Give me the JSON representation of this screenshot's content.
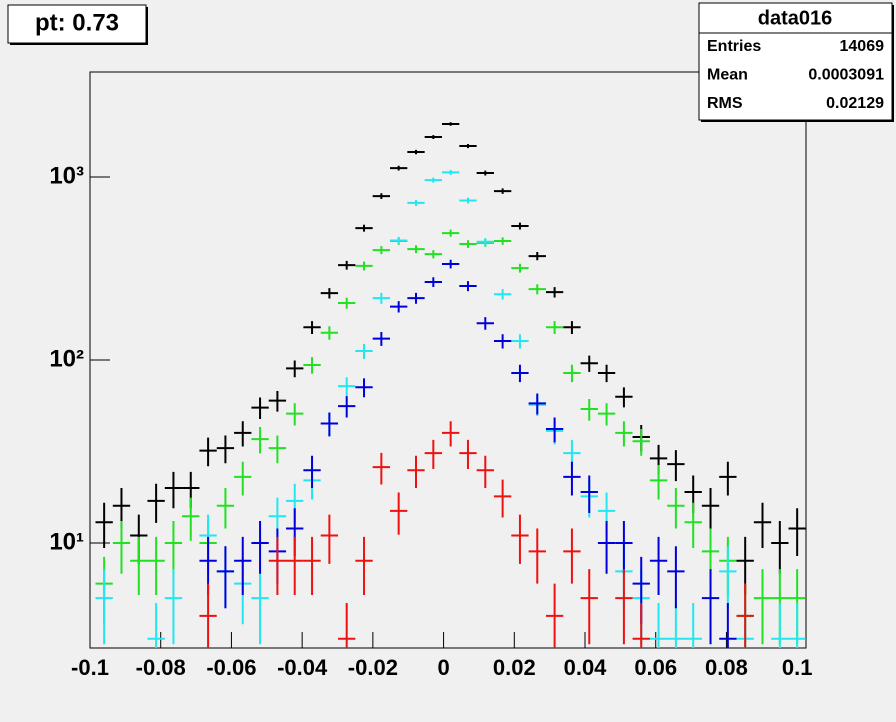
{
  "chart_data": {
    "type": "errorbar",
    "title": "pt: 0.73",
    "stats": {
      "title": "data016",
      "rows": [
        [
          "Entries",
          14069
        ],
        [
          "Mean",
          0.0003091
        ],
        [
          "RMS",
          0.02129
        ]
      ]
    },
    "xlim": [
      -0.1,
      0.1025
    ],
    "xticks": [
      -0.1,
      -0.08,
      -0.06,
      -0.04,
      -0.02,
      0,
      0.02,
      0.04,
      0.06,
      0.08,
      0.1
    ],
    "ylim": [
      2.67,
      3750
    ],
    "ylog": true,
    "yticks": [
      {
        "value": 10,
        "label": "10¹"
      },
      {
        "value": 100,
        "label": "10²"
      },
      {
        "value": 1000,
        "label": "10³"
      }
    ],
    "bin_width": 0.0049,
    "x": [
      -0.096,
      -0.0911,
      -0.0862,
      -0.0813,
      -0.0764,
      -0.0715,
      -0.0666,
      -0.0617,
      -0.0568,
      -0.0519,
      -0.047,
      -0.0421,
      -0.0372,
      -0.0323,
      -0.0274,
      -0.0225,
      -0.0176,
      -0.0127,
      -0.0078,
      -0.0029,
      0.002,
      0.0069,
      0.0118,
      0.0167,
      0.0216,
      0.0265,
      0.0314,
      0.0363,
      0.0412,
      0.0461,
      0.051,
      0.0559,
      0.0608,
      0.0657,
      0.0706,
      0.0755,
      0.0804,
      0.0853,
      0.0902,
      0.0951,
      0.1
    ],
    "series": [
      {
        "color": "#000000",
        "values": [
          13,
          16,
          11,
          17,
          20,
          20,
          32,
          33,
          40,
          55,
          60,
          90,
          151,
          232,
          330,
          526,
          787,
          1119,
          1370,
          1655,
          1950,
          1477,
          1052,
          838,
          540,
          370,
          235,
          151,
          96,
          85,
          63,
          38,
          29,
          27,
          19,
          16,
          23,
          8,
          13,
          10,
          12
        ],
        "yerr": [
          3.6,
          4,
          3.3,
          4.1,
          4.5,
          4.5,
          5.7,
          5.7,
          6.3,
          7.4,
          7.7,
          9.5,
          12.3,
          15.2,
          18.2,
          22.9,
          28.1,
          33.5,
          37,
          40.7,
          44.2,
          38.4,
          32.4,
          28.9,
          23.2,
          19.2,
          15.3,
          12.3,
          9.8,
          9.2,
          7.9,
          6.2,
          5.4,
          5.2,
          4.4,
          4,
          4.8,
          2.8,
          3.6,
          3.2,
          3.5
        ]
      },
      {
        "color": "#22e022",
        "values": [
          6,
          10,
          8,
          8,
          10,
          14,
          10,
          16,
          23,
          37,
          33,
          51,
          94,
          141,
          205,
          327,
          399,
          447,
          404,
          379,
          494,
          431,
          437,
          447,
          318,
          244,
          151,
          85,
          54,
          51,
          40,
          36,
          22,
          16,
          13,
          9,
          8,
          4,
          5,
          5,
          5
        ],
        "yerr": [
          2.4,
          3.2,
          2.8,
          2.8,
          3.2,
          3.7,
          3.2,
          4,
          4.8,
          6.1,
          5.7,
          7.1,
          9.7,
          11.9,
          14.3,
          18.1,
          20,
          21.1,
          20.1,
          19.5,
          22.2,
          20.8,
          20.9,
          21.1,
          17.8,
          15.6,
          12.3,
          9.2,
          7.3,
          7.1,
          6.3,
          6,
          4.7,
          4,
          3.6,
          3,
          2.8,
          2,
          2.2,
          2.2,
          2.2
        ]
      },
      {
        "color": "#22e6f0",
        "values": [
          5,
          null,
          null,
          3,
          5,
          null,
          11,
          7,
          6,
          5,
          14,
          17,
          22,
          45,
          72,
          112,
          218,
          450,
          722,
          962,
          1060,
          745,
          443,
          229,
          127,
          57,
          41,
          31,
          18,
          15,
          7,
          5,
          3,
          3,
          3,
          null,
          7,
          3,
          null,
          3,
          3
        ],
        "yerr": [
          2.2,
          null,
          null,
          1.7,
          2.2,
          null,
          3.3,
          2.6,
          2.4,
          2.2,
          3.7,
          4.1,
          4.7,
          6.7,
          8.5,
          10.6,
          14.8,
          21.2,
          26.9,
          31,
          32.6,
          27.3,
          21,
          15.1,
          11.3,
          7.5,
          6.4,
          5.6,
          4.2,
          3.9,
          2.6,
          2.2,
          1.7,
          1.7,
          1.7,
          null,
          2.6,
          1.7,
          null,
          1.7,
          1.7
        ]
      },
      {
        "color": "#0000dd",
        "values": [
          null,
          null,
          null,
          null,
          null,
          null,
          8,
          7,
          8,
          10,
          9,
          12,
          25,
          45,
          56,
          71,
          131,
          196,
          218,
          267,
          335,
          254,
          159,
          127,
          85,
          58,
          42,
          23,
          19,
          10,
          10,
          6,
          8,
          7,
          null,
          5,
          3,
          null,
          null,
          null,
          null
        ],
        "yerr": [
          null,
          null,
          null,
          null,
          null,
          null,
          2.8,
          2.6,
          2.8,
          3.2,
          3,
          3.5,
          5,
          6.7,
          7.5,
          8.4,
          11.4,
          14,
          14.8,
          16.3,
          18.3,
          15.9,
          12.6,
          11.3,
          9.2,
          7.6,
          6.5,
          4.8,
          4.4,
          3.2,
          3.2,
          2.4,
          2.8,
          2.6,
          null,
          2.2,
          1.7,
          null,
          null,
          null,
          null
        ]
      },
      {
        "color": "#ee1111",
        "values": [
          null,
          null,
          null,
          null,
          null,
          null,
          4,
          null,
          null,
          null,
          8,
          8,
          8,
          11,
          3,
          8,
          26,
          15,
          25,
          31,
          40,
          31,
          25,
          18,
          11,
          9,
          4,
          9,
          5,
          null,
          5,
          3,
          null,
          null,
          null,
          null,
          null,
          4,
          null,
          null,
          null
        ],
        "yerr": [
          null,
          null,
          null,
          null,
          null,
          null,
          2,
          null,
          null,
          null,
          2.8,
          2.8,
          2.8,
          3.3,
          1.7,
          2.8,
          5.1,
          3.9,
          5,
          5.6,
          6.3,
          5.6,
          5,
          4.2,
          3.3,
          3,
          2,
          3,
          2.2,
          null,
          2.2,
          1.7,
          null,
          null,
          null,
          null,
          null,
          2,
          null,
          null,
          null
        ]
      }
    ]
  }
}
